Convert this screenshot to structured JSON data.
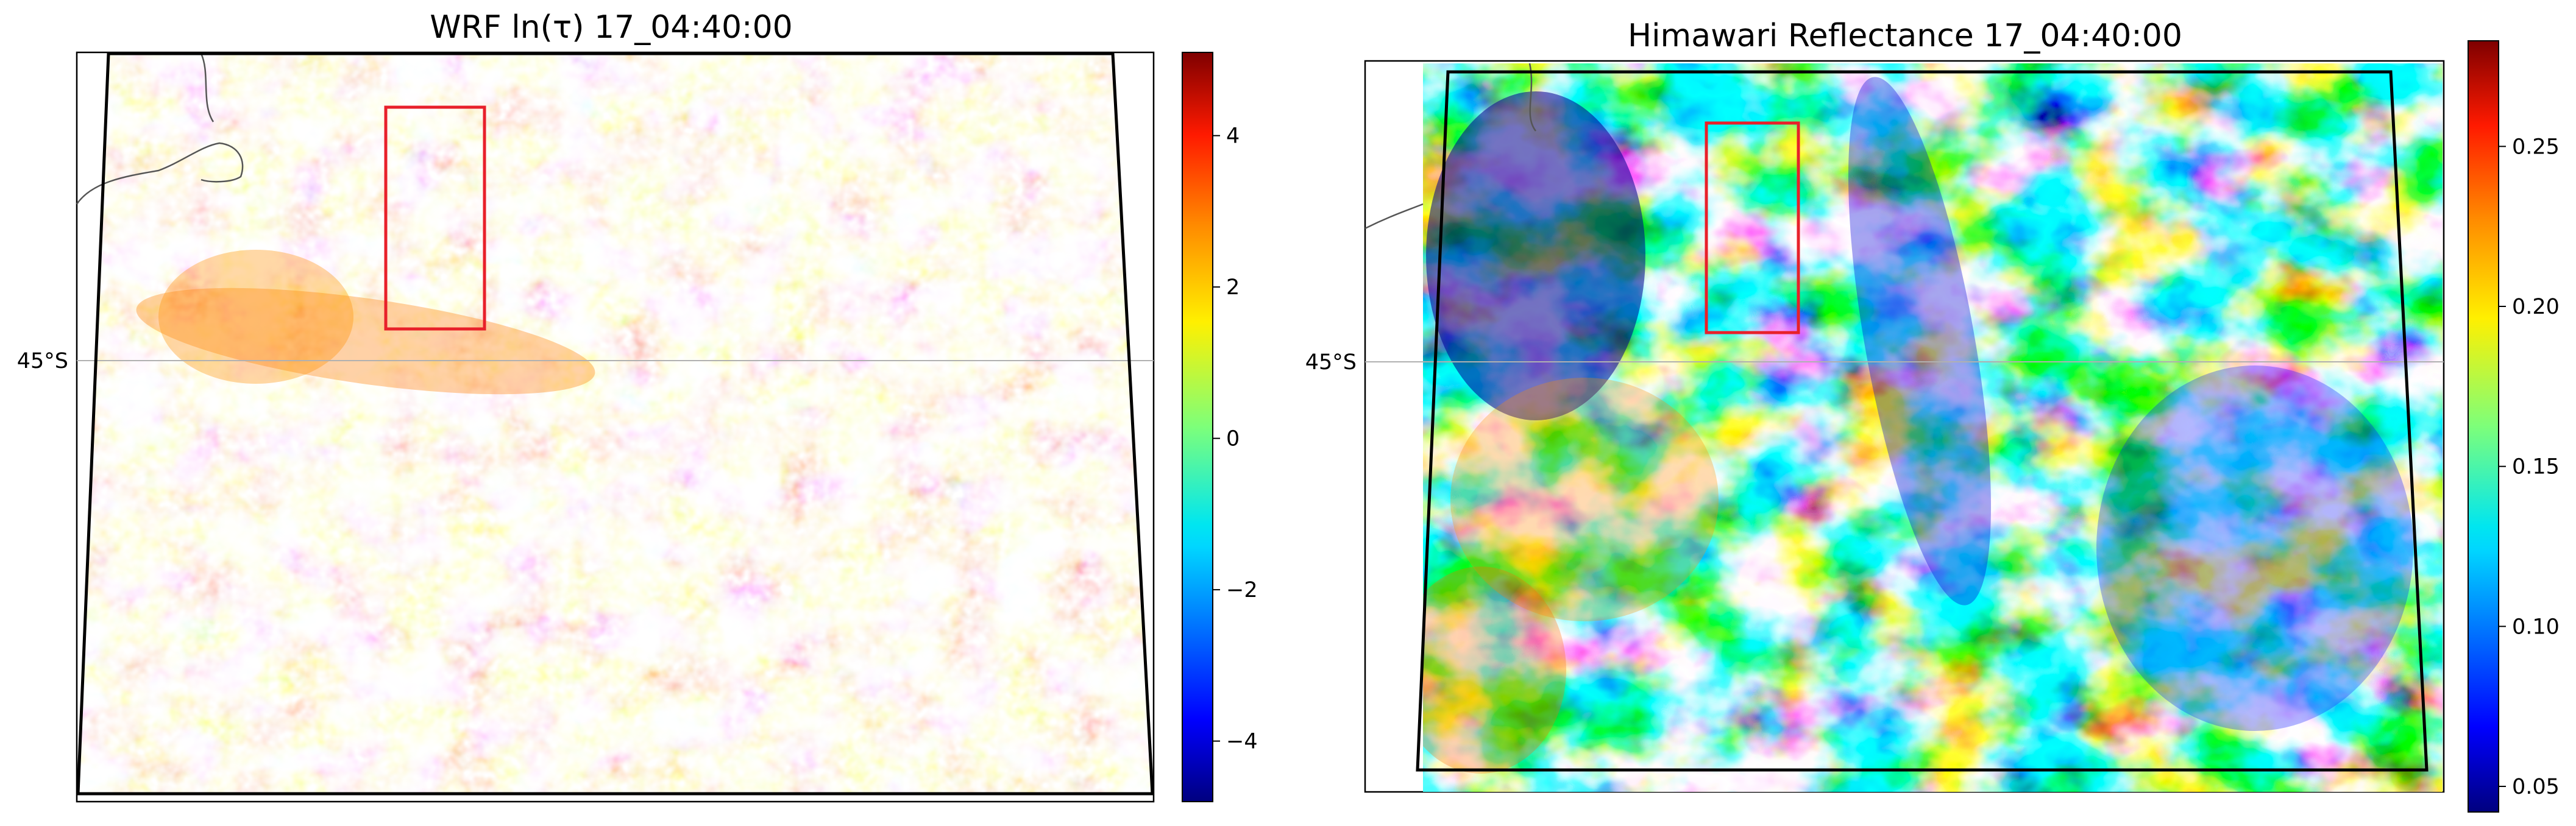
{
  "panels": [
    {
      "title": "WRF ln(τ) 17_04:40:00",
      "latitude_label": "45°S",
      "field": "optical-depth-log",
      "colormap": "jet",
      "colorbar": {
        "ticks": [
          "−4",
          "−2",
          "0",
          "2",
          "4"
        ],
        "tick_values": [
          -4,
          -2,
          0,
          2,
          4
        ],
        "range": [
          -4.8,
          5.1
        ]
      },
      "marker_box_color": "#e8202a"
    },
    {
      "title": "Himawari Reflectance 17_04:40:00",
      "latitude_label": "45°S",
      "field": "reflectance",
      "colormap": "jet",
      "colorbar": {
        "ticks": [
          "0.05",
          "0.10",
          "0.15",
          "0.20",
          "0.25"
        ],
        "tick_values": [
          0.05,
          0.1,
          0.15,
          0.2,
          0.25
        ],
        "range": [
          0.042,
          0.283
        ]
      },
      "marker_box_color": "#e8202a"
    }
  ]
}
